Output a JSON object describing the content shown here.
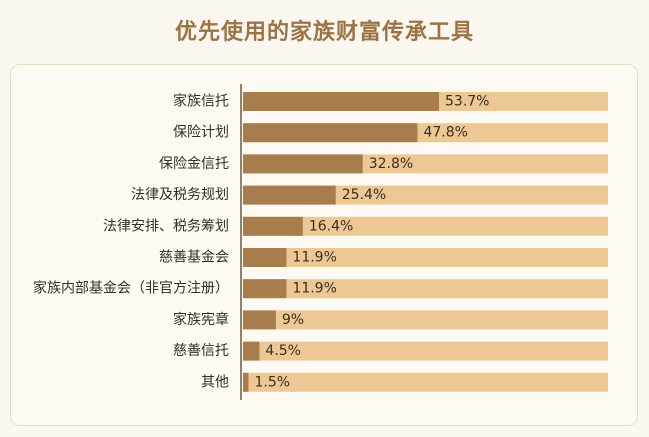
{
  "title": "优先使用的家族财富传承工具",
  "chart_data": {
    "type": "bar",
    "orientation": "horizontal",
    "title": "优先使用的家族财富传承工具",
    "xlabel": "",
    "ylabel": "",
    "xlim": [
      0,
      100
    ],
    "grid": false,
    "categories": [
      "家族信托",
      "保险计划",
      "保险金信托",
      "法律及税务规划",
      "法律安排、税务筹划",
      "慈善基金会",
      "家族内部基金会（非官方注册）",
      "家族宪章",
      "慈善信托",
      "其他"
    ],
    "values": [
      53.7,
      47.8,
      32.8,
      25.4,
      16.4,
      11.9,
      11.9,
      9,
      4.5,
      1.5
    ],
    "value_labels": [
      "53.7%",
      "47.8%",
      "32.8%",
      "25.4%",
      "16.4%",
      "11.9%",
      "11.9%",
      "9%",
      "4.5%",
      "1.5%"
    ],
    "colors": {
      "bar": "#a87d4e",
      "track": "#edc894",
      "text": "#3a2e22",
      "axis": "#6b5a44"
    }
  }
}
